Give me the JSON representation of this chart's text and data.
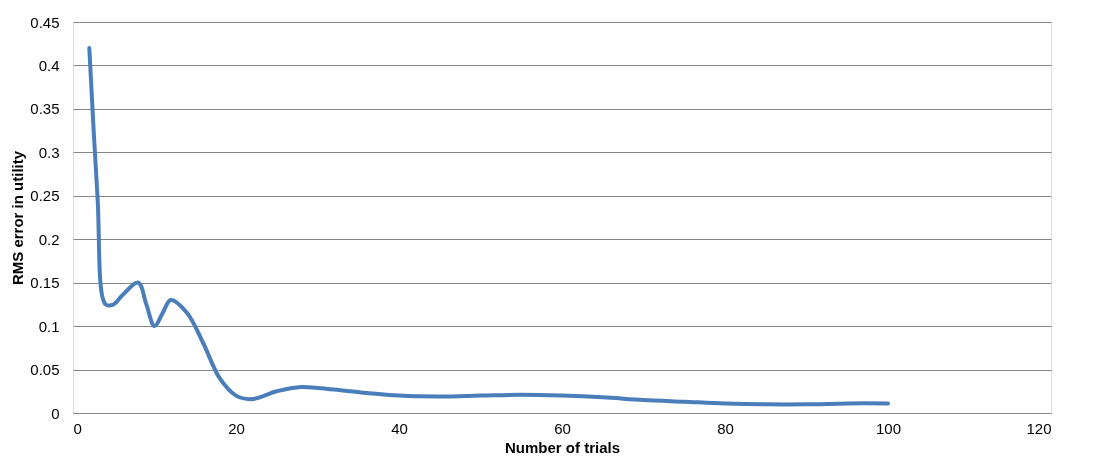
{
  "chart_data": {
    "type": "line",
    "xlabel": "Number of trials",
    "ylabel": "RMS error in utility",
    "series": [
      {
        "color": "#4a7ebb",
        "x": [
          2,
          3,
          4,
          5,
          6,
          8,
          9,
          10,
          11,
          12,
          14,
          16,
          18,
          20,
          22,
          25,
          28,
          32,
          36,
          40,
          45,
          50,
          55,
          60,
          65,
          70,
          75,
          80,
          85,
          90,
          95,
          100
        ],
        "values": [
          0.42,
          0.25,
          0.125,
          0.125,
          0.135,
          0.15,
          0.125,
          0.1,
          0.115,
          0.13,
          0.115,
          0.08,
          0.04,
          0.02,
          0.016,
          0.025,
          0.03,
          0.027,
          0.023,
          0.02,
          0.019,
          0.02,
          0.021,
          0.02,
          0.018,
          0.015,
          0.013,
          0.011,
          0.01,
          0.01,
          0.011,
          0.011
        ]
      }
    ],
    "xlim": [
      0,
      120
    ],
    "xticks": [
      0,
      20,
      40,
      60,
      80,
      100,
      120
    ],
    "ylim": [
      0,
      0.45
    ],
    "yticks": [
      0,
      0.05,
      0.1,
      0.15,
      0.2,
      0.25,
      0.3,
      0.35,
      0.4,
      0.45
    ],
    "grid": "y",
    "marker": "none",
    "line_style": "solid"
  }
}
